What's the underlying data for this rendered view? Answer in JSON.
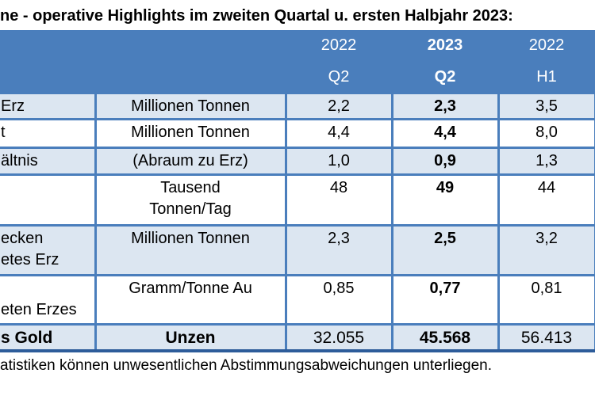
{
  "title": "ne - operative Highlights im zweiten Quartal u. ersten Halbjahr 2023:",
  "header": {
    "columns": [
      {
        "year": "2022",
        "period": "Q2"
      },
      {
        "year": "2023",
        "period": "Q2"
      },
      {
        "year": "2022",
        "period": "H1"
      }
    ]
  },
  "rows": [
    {
      "label": "Erz",
      "unit": "Millionen Tonnen",
      "values": [
        "2,2",
        "2,3",
        "3,5"
      ]
    },
    {
      "label": "t",
      "unit": "Millionen Tonnen",
      "values": [
        "4,4",
        "4,4",
        "8,0"
      ]
    },
    {
      "label": "ältnis",
      "unit": "(Abraum zu Erz)",
      "values": [
        "1,0",
        "0,9",
        "1,3"
      ]
    },
    {
      "label": "",
      "unit": "Tausend",
      "unit2": "Tonnen/Tag",
      "values": [
        "48",
        "49",
        "44"
      ]
    },
    {
      "label": "ecken",
      "label2": "etes Erz",
      "unit": "Millionen Tonnen",
      "values": [
        "2,3",
        "2,5",
        "3,2"
      ]
    },
    {
      "label": "",
      "label2": "eten Erzes",
      "unit": "Gramm/Tonne Au",
      "values": [
        "0,85",
        "0,77",
        "0,81"
      ]
    },
    {
      "label": "s Gold",
      "unit": "Unzen",
      "values": [
        "32.055",
        "45.568",
        "56.413"
      ]
    }
  ],
  "footer": "atistiken können unwesentlichen Abstimmungsabweichungen unterliegen.",
  "colors": {
    "header_bg": "#4a7ebc",
    "banded_row_bg": "#dce6f1",
    "border": "#4a7ebc",
    "bottom_border": "#2d5c9a",
    "header_text": "#ffffff",
    "body_text": "#000000"
  }
}
